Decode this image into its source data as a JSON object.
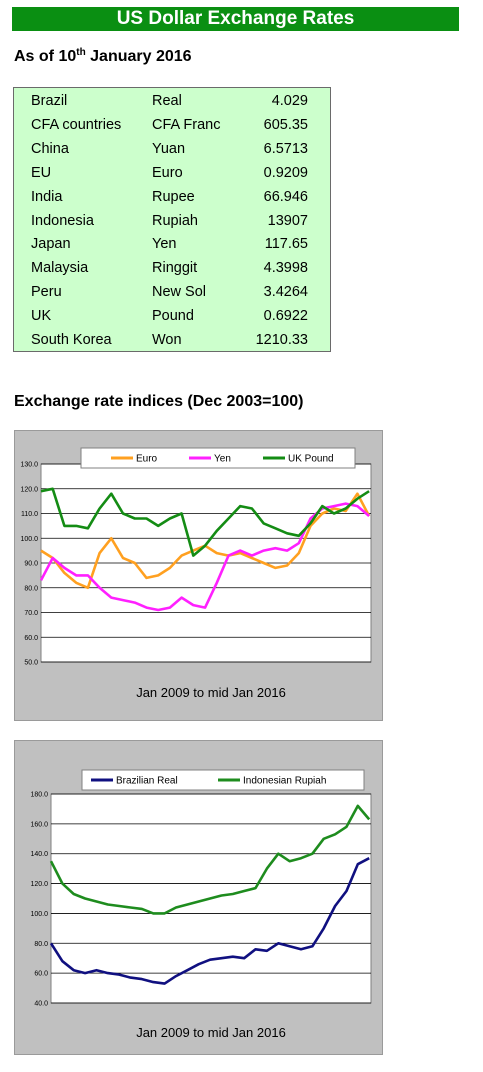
{
  "title": "US Dollar Exchange Rates",
  "as_of": {
    "prefix": "As of 10",
    "sup": "th",
    "suffix": " January 2016"
  },
  "rates": [
    {
      "country": "Brazil",
      "currency": "Real",
      "rate": "4.029"
    },
    {
      "country": "CFA countries",
      "currency": "CFA Franc",
      "rate": "605.35"
    },
    {
      "country": "China",
      "currency": "Yuan",
      "rate": "6.5713"
    },
    {
      "country": "EU",
      "currency": "Euro",
      "rate": "0.9209"
    },
    {
      "country": "India",
      "currency": "Rupee",
      "rate": "66.946"
    },
    {
      "country": "Indonesia",
      "currency": "Rupiah",
      "rate": "13907"
    },
    {
      "country": "Japan",
      "currency": "Yen",
      "rate": "117.65"
    },
    {
      "country": "Malaysia",
      "currency": "Ringgit",
      "rate": "4.3998"
    },
    {
      "country": "Peru",
      "currency": "New Sol",
      "rate": "3.4264"
    },
    {
      "country": "UK",
      "currency": "Pound",
      "rate": "0.6922"
    },
    {
      "country": "South Korea",
      "currency": "Won",
      "rate": "1210.33"
    }
  ],
  "indices_heading": "Exchange rate indices (Dec 2003=100)",
  "chart_data": [
    {
      "type": "line",
      "xlabel": "Jan 2009 to mid Jan 2016",
      "ylabel": "",
      "x_range": [
        2009.0,
        2016.04
      ],
      "ylim": [
        50,
        130
      ],
      "yticks": [
        "50.0",
        "60.0",
        "70.0",
        "80.0",
        "90.0",
        "100.0",
        "110.0",
        "120.0",
        "130.0"
      ],
      "grid": "horizontal",
      "legend": "top",
      "x": [
        2009.0,
        2009.25,
        2009.5,
        2009.75,
        2010.0,
        2010.25,
        2010.5,
        2010.75,
        2011.0,
        2011.25,
        2011.5,
        2011.75,
        2012.0,
        2012.25,
        2012.5,
        2012.75,
        2013.0,
        2013.25,
        2013.5,
        2013.75,
        2014.0,
        2014.25,
        2014.5,
        2014.75,
        2015.0,
        2015.25,
        2015.5,
        2015.75,
        2016.0
      ],
      "series": [
        {
          "name": "Euro",
          "color": "#ffa020",
          "values": [
            95,
            92,
            86,
            82,
            80,
            94,
            100,
            92,
            90,
            84,
            85,
            88,
            93,
            95,
            97,
            94,
            93,
            94,
            92,
            90,
            88,
            89,
            94,
            105,
            110,
            112,
            111,
            118,
            109
          ]
        },
        {
          "name": "Yen",
          "color": "#ff20ff",
          "values": [
            83,
            92,
            88,
            85,
            85,
            80,
            76,
            75,
            74,
            72,
            71,
            72,
            76,
            73,
            72,
            82,
            93,
            95,
            93,
            95,
            96,
            95,
            98,
            108,
            112,
            113,
            114,
            113,
            109
          ]
        },
        {
          "name": "UK Pound",
          "color": "#148c14",
          "values": [
            119,
            120,
            105,
            105,
            104,
            112,
            118,
            110,
            108,
            108,
            105,
            108,
            110,
            93,
            97,
            103,
            108,
            113,
            112,
            106,
            104,
            102,
            101,
            106,
            113,
            110,
            112,
            116,
            119
          ]
        }
      ]
    },
    {
      "type": "line",
      "xlabel": "Jan 2009 to mid Jan 2016",
      "ylabel": "",
      "x_range": [
        2009.0,
        2016.04
      ],
      "ylim": [
        40,
        180
      ],
      "yticks": [
        "40.0",
        "60.0",
        "80.0",
        "100.0",
        "120.0",
        "140.0",
        "160.0",
        "180.0"
      ],
      "grid": "horizontal",
      "legend": "top",
      "x": [
        2009.0,
        2009.25,
        2009.5,
        2009.75,
        2010.0,
        2010.25,
        2010.5,
        2010.75,
        2011.0,
        2011.25,
        2011.5,
        2011.75,
        2012.0,
        2012.25,
        2012.5,
        2012.75,
        2013.0,
        2013.25,
        2013.5,
        2013.75,
        2014.0,
        2014.25,
        2014.5,
        2014.75,
        2015.0,
        2015.25,
        2015.5,
        2015.75,
        2016.0
      ],
      "series": [
        {
          "name": "Brazilian Real",
          "color": "#101080",
          "values": [
            80,
            68,
            62,
            60,
            62,
            60,
            59,
            57,
            56,
            54,
            53,
            58,
            62,
            66,
            69,
            70,
            71,
            70,
            76,
            75,
            80,
            78,
            76,
            78,
            90,
            105,
            115,
            133,
            137
          ]
        },
        {
          "name": "Indonesian Rupiah",
          "color": "#1e8c1e",
          "values": [
            135,
            120,
            113,
            110,
            108,
            106,
            105,
            104,
            103,
            100,
            100,
            104,
            106,
            108,
            110,
            112,
            113,
            115,
            117,
            130,
            140,
            135,
            137,
            140,
            150,
            153,
            158,
            172,
            163
          ]
        }
      ]
    }
  ]
}
